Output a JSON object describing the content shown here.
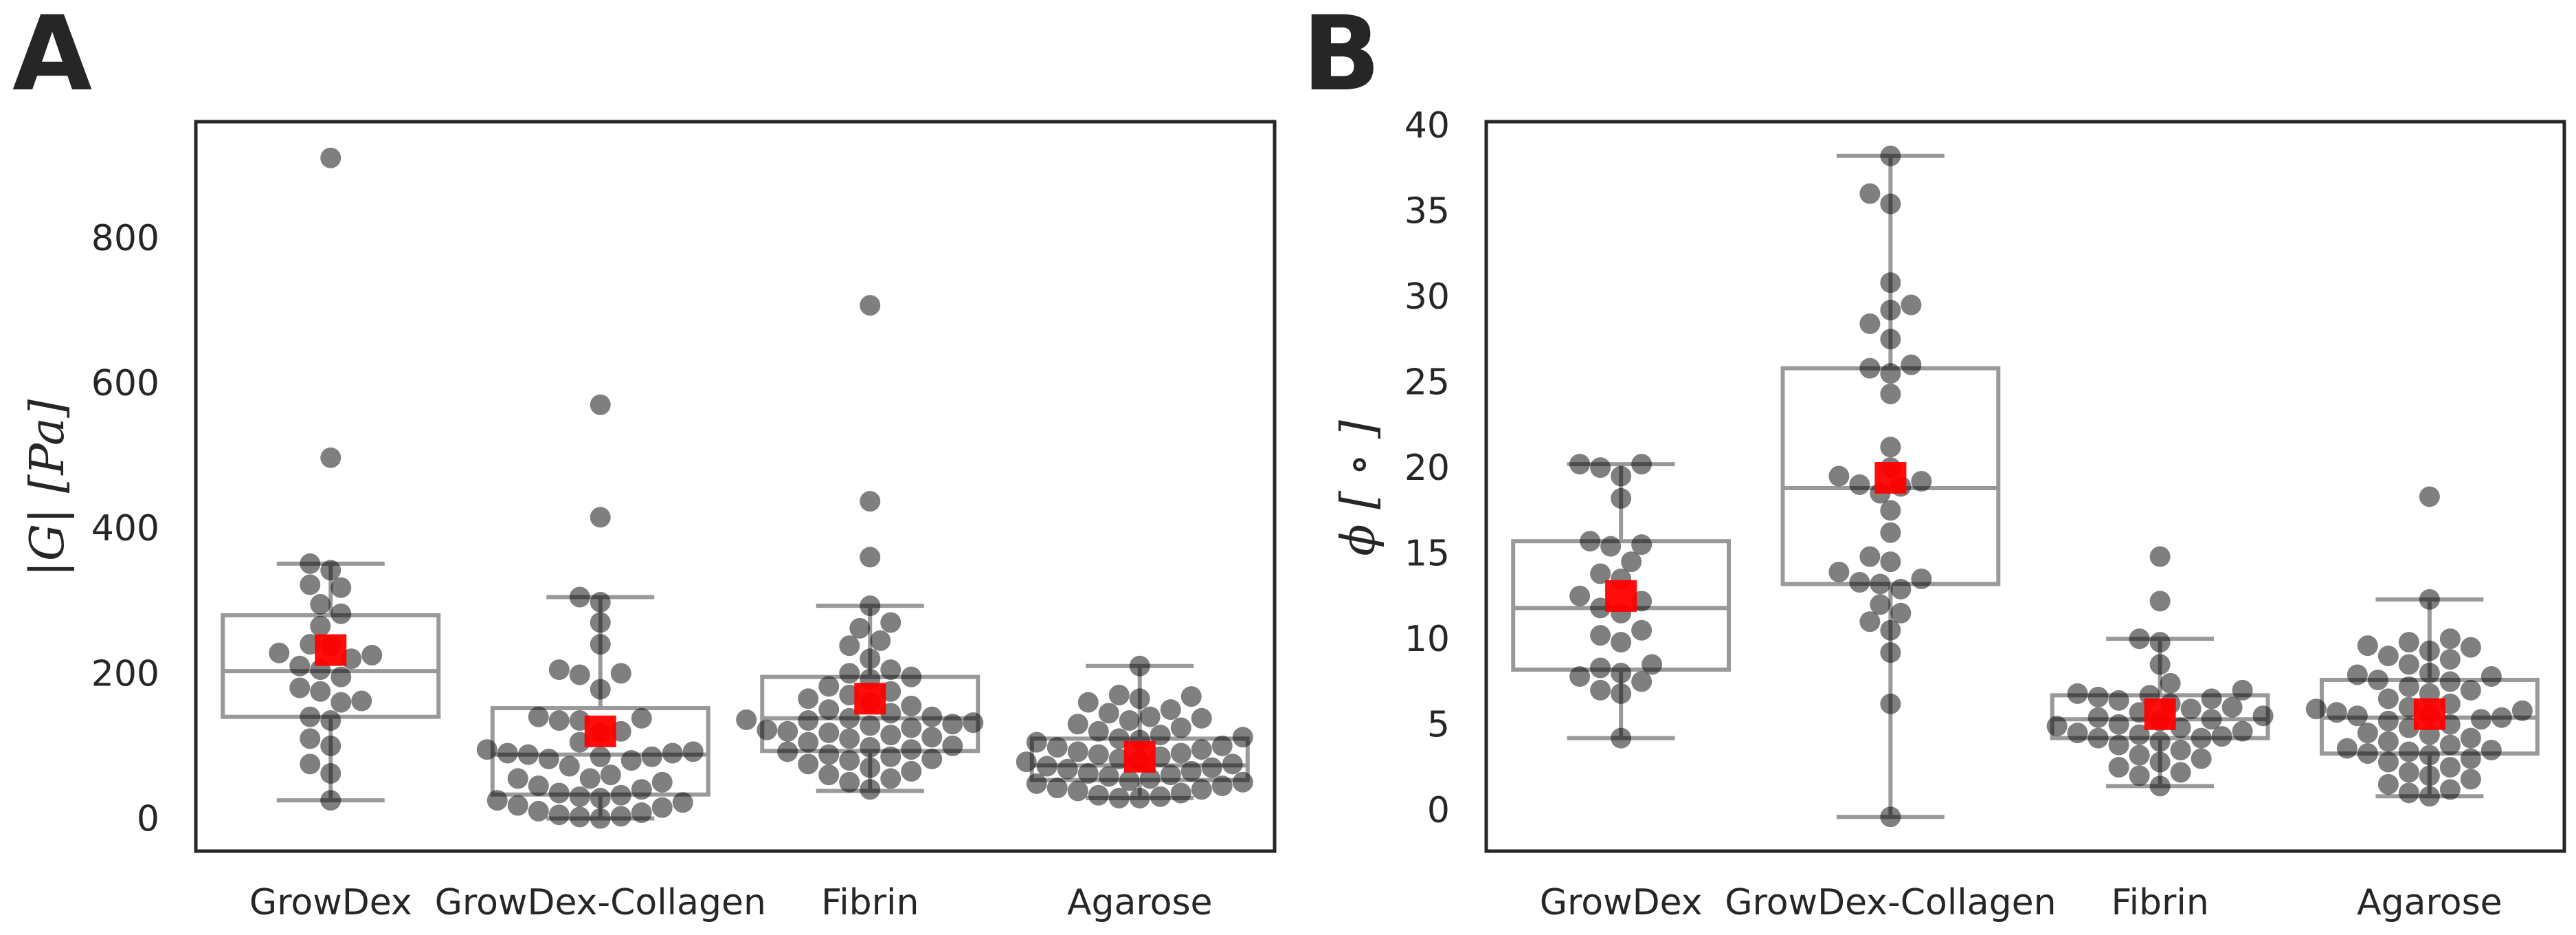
{
  "chart_data": [
    {
      "panel": "A",
      "type": "box-swarm",
      "ylabel": "|G| [Pa]",
      "ylim": [
        -45,
        960
      ],
      "yticks": [
        0,
        200,
        400,
        600,
        800
      ],
      "grid": false,
      "categories": [
        "GrowDex",
        "GrowDex-Collagen",
        "Fibrin",
        "Agarose"
      ],
      "box_stats": [
        {
          "whislo": 25,
          "q1": 140,
          "median": 203,
          "q3": 280,
          "whishi": 351
        },
        {
          "whislo": 0,
          "q1": 33,
          "median": 88,
          "q3": 152,
          "whishi": 305
        },
        {
          "whislo": 38,
          "q1": 93,
          "median": 138,
          "q3": 195,
          "whishi": 293
        },
        {
          "whislo": 28,
          "q1": 53,
          "median": 73,
          "q3": 110,
          "whishi": 210
        }
      ],
      "means": [
        232,
        120,
        165,
        85
      ],
      "points": [
        [
          910,
          497,
          351,
          342,
          322,
          318,
          295,
          282,
          265,
          240,
          238,
          228,
          225,
          220,
          210,
          205,
          195,
          180,
          175,
          162,
          160,
          140,
          135,
          110,
          100,
          75,
          62,
          25
        ],
        [
          570,
          415,
          305,
          298,
          270,
          240,
          205,
          200,
          198,
          178,
          140,
          138,
          135,
          135,
          120,
          118,
          105,
          95,
          92,
          90,
          90,
          88,
          85,
          85,
          82,
          80,
          72,
          60,
          55,
          55,
          50,
          45,
          40,
          35,
          32,
          30,
          28,
          25,
          22,
          18,
          15,
          10,
          8,
          5,
          3,
          2,
          0
        ],
        [
          707,
          437,
          360,
          293,
          270,
          262,
          245,
          238,
          220,
          205,
          200,
          195,
          192,
          182,
          175,
          170,
          165,
          160,
          155,
          150,
          145,
          140,
          138,
          136,
          135,
          132,
          130,
          128,
          125,
          122,
          120,
          118,
          115,
          112,
          110,
          105,
          100,
          98,
          95,
          92,
          88,
          85,
          82,
          80,
          75,
          70,
          65,
          60,
          55,
          50,
          40
        ],
        [
          210,
          170,
          168,
          165,
          160,
          150,
          145,
          140,
          138,
          135,
          130,
          125,
          120,
          115,
          112,
          110,
          108,
          105,
          100,
          98,
          95,
          92,
          90,
          88,
          85,
          82,
          80,
          78,
          75,
          72,
          70,
          68,
          65,
          62,
          60,
          58,
          55,
          52,
          50,
          48,
          45,
          42,
          40,
          38,
          35,
          32,
          30,
          28,
          28
        ]
      ]
    },
    {
      "panel": "B",
      "type": "box-swarm",
      "ylabel": "ϕ [ ∘ ]",
      "ylim": [
        -2.4,
        40.2
      ],
      "yticks": [
        0,
        5,
        10,
        15,
        20,
        25,
        30,
        35,
        40
      ],
      "grid": false,
      "categories": [
        "GrowDex",
        "GrowDex-Collagen",
        "Fibrin",
        "Agarose"
      ],
      "box_stats": [
        {
          "whislo": 4.2,
          "q1": 8.2,
          "median": 11.8,
          "q3": 15.7,
          "whishi": 20.2
        },
        {
          "whislo": -0.4,
          "q1": 13.2,
          "median": 18.8,
          "q3": 25.8,
          "whishi": 38.2
        },
        {
          "whislo": 1.4,
          "q1": 4.2,
          "median": 5.3,
          "q3": 6.7,
          "whishi": 10.0
        },
        {
          "whislo": 0.8,
          "q1": 3.3,
          "median": 5.4,
          "q3": 7.6,
          "whishi": 12.3
        }
      ],
      "means": [
        12.5,
        19.4,
        5.6,
        5.6
      ],
      "points": [
        [
          20.2,
          20.2,
          20.0,
          19.5,
          18.2,
          15.7,
          15.5,
          15.4,
          14.5,
          13.8,
          13.5,
          12.5,
          12.2,
          11.8,
          11.5,
          10.5,
          10.2,
          9.8,
          8.5,
          8.3,
          8.0,
          7.8,
          7.5,
          7.0,
          6.8,
          4.2
        ],
        [
          38.2,
          36.0,
          35.4,
          30.8,
          29.5,
          29.2,
          28.4,
          27.5,
          26.0,
          25.8,
          25.5,
          24.3,
          21.2,
          20.0,
          19.5,
          19.2,
          19.0,
          18.9,
          18.5,
          17.5,
          16.2,
          14.8,
          14.5,
          13.9,
          13.5,
          13.3,
          13.2,
          12.9,
          12.0,
          11.5,
          11.0,
          10.5,
          9.2,
          6.2,
          -0.4
        ],
        [
          14.8,
          12.2,
          10.0,
          9.8,
          8.5,
          7.4,
          7.0,
          6.8,
          6.7,
          6.6,
          6.5,
          6.4,
          6.2,
          6.0,
          5.9,
          5.7,
          5.5,
          5.4,
          5.3,
          5.2,
          5.0,
          4.9,
          4.8,
          4.6,
          4.5,
          4.4,
          4.3,
          4.2,
          4.2,
          4.0,
          3.8,
          3.5,
          3.2,
          3.0,
          2.8,
          2.5,
          2.2,
          2.0,
          1.4
        ],
        [
          18.3,
          12.3,
          10.0,
          9.8,
          9.6,
          9.5,
          9.3,
          9.0,
          8.8,
          8.5,
          8.0,
          7.9,
          7.8,
          7.6,
          7.5,
          7.2,
          7.0,
          6.8,
          6.5,
          6.2,
          6.0,
          5.9,
          5.8,
          5.7,
          5.6,
          5.5,
          5.4,
          5.3,
          5.2,
          5.0,
          4.8,
          4.5,
          4.4,
          4.2,
          4.0,
          3.8,
          3.6,
          3.5,
          3.4,
          3.3,
          3.2,
          3.0,
          2.8,
          2.5,
          2.2,
          2.0,
          1.8,
          1.5,
          1.2,
          1.0,
          0.8
        ]
      ]
    }
  ],
  "style": {
    "point_color": "#000000",
    "point_opacity": 0.5,
    "box_color": "#999999",
    "mean_color": "#ff0000",
    "frame_color": "#262626",
    "text_color": "#262626"
  }
}
